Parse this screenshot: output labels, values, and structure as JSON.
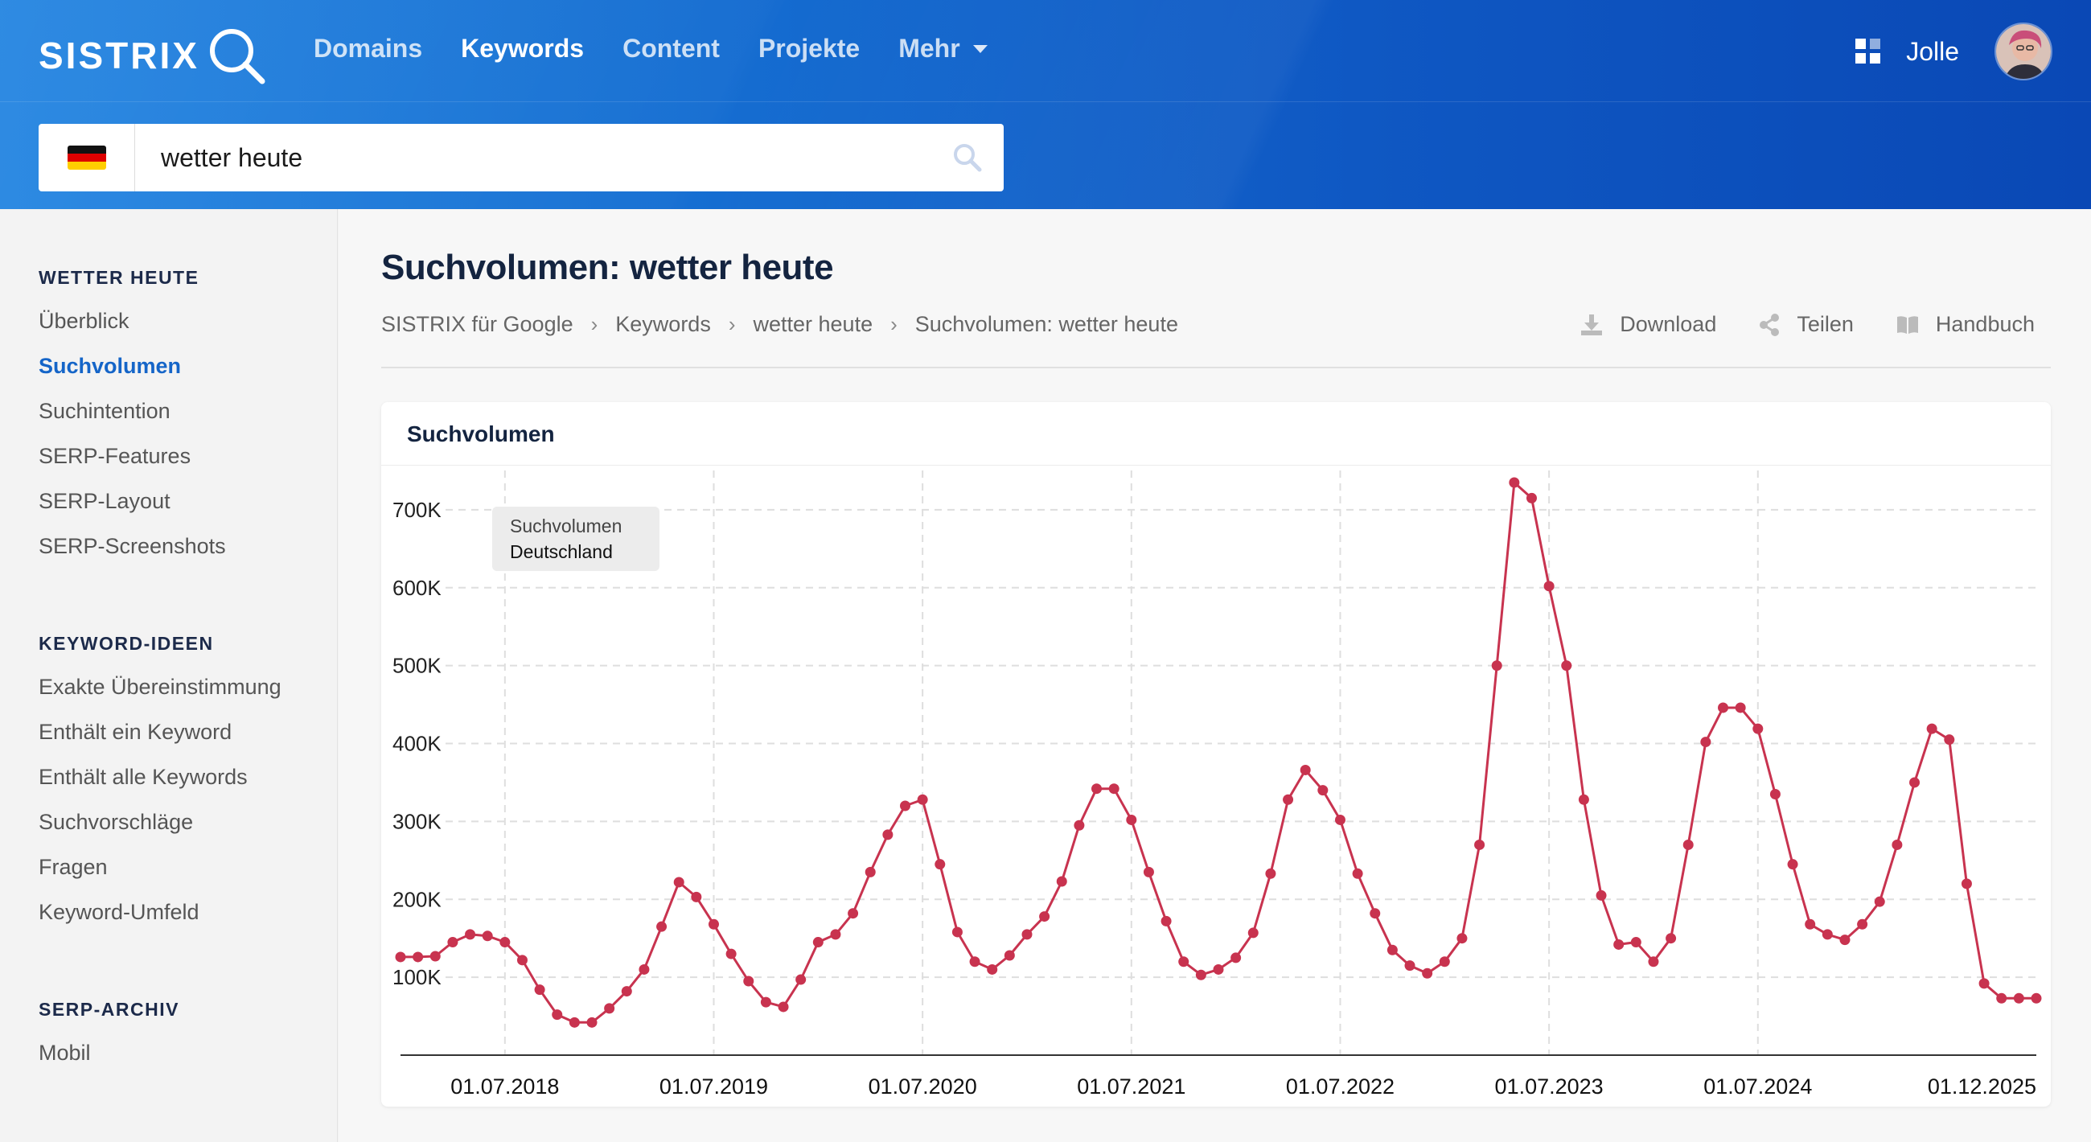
{
  "header": {
    "logo_text": "SISTRIX",
    "nav": [
      {
        "label": "Domains",
        "active": false
      },
      {
        "label": "Keywords",
        "active": true
      },
      {
        "label": "Content",
        "active": false
      },
      {
        "label": "Projekte",
        "active": false
      },
      {
        "label": "Mehr",
        "active": false
      }
    ],
    "user_name": "Jolle",
    "icons": {
      "logo": "magnifier-logo-icon",
      "apps": "apps-grid-icon",
      "caret": "chevron-down-icon"
    }
  },
  "search": {
    "value": "wetter heute",
    "country_flag": "germany-flag-icon",
    "flag_colors": [
      "#111111",
      "#dd0000",
      "#ffce00"
    ]
  },
  "sidebar": {
    "sections": [
      {
        "heading": "WETTER HEUTE",
        "items": [
          {
            "label": "Überblick",
            "active": false
          },
          {
            "label": "Suchvolumen",
            "active": true
          },
          {
            "label": "Suchintention",
            "active": false
          },
          {
            "label": "SERP-Features",
            "active": false
          },
          {
            "label": "SERP-Layout",
            "active": false
          },
          {
            "label": "SERP-Screenshots",
            "active": false
          }
        ]
      },
      {
        "heading": "KEYWORD-IDEEN",
        "items": [
          {
            "label": "Exakte Übereinstimmung",
            "active": false
          },
          {
            "label": "Enthält ein Keyword",
            "active": false
          },
          {
            "label": "Enthält alle Keywords",
            "active": false
          },
          {
            "label": "Suchvorschläge",
            "active": false
          },
          {
            "label": "Fragen",
            "active": false
          },
          {
            "label": "Keyword-Umfeld",
            "active": false
          }
        ]
      },
      {
        "heading": "SERP-ARCHIV",
        "items": [
          {
            "label": "Mobil",
            "active": false
          }
        ]
      }
    ]
  },
  "main": {
    "title": "Suchvolumen: wetter heute",
    "breadcrumb": [
      "SISTRIX für Google",
      "Keywords",
      "wetter heute",
      "Suchvolumen: wetter heute"
    ],
    "breadcrumb_separator": "›",
    "actions": [
      {
        "label": "Download",
        "icon": "download-icon"
      },
      {
        "label": "Teilen",
        "icon": "share-icon"
      },
      {
        "label": "Handbuch",
        "icon": "book-icon"
      }
    ],
    "card_title": "Suchvolumen"
  },
  "chart_data": {
    "type": "line",
    "title": "Suchvolumen",
    "legend": [
      "Suchvolumen",
      "Deutschland"
    ],
    "legend_placement": "top-left",
    "color": "#c8334f",
    "grid": true,
    "ylim": [
      0,
      735000
    ],
    "y_ticks": [
      100000,
      200000,
      300000,
      400000,
      500000,
      600000,
      700000
    ],
    "y_tick_labels": [
      "100K",
      "200K",
      "300K",
      "400K",
      "500K",
      "600K",
      "700K"
    ],
    "x_tick_labels": [
      "01.07.2018",
      "01.07.2019",
      "01.07.2020",
      "01.07.2021",
      "01.07.2022",
      "01.07.2023",
      "01.07.2024",
      "01.12.2025"
    ],
    "x_start": "2018-01",
    "x_end": "2025-12",
    "series": [
      {
        "name": "Suchvolumen Deutschland",
        "values": [
          126000,
          126000,
          127000,
          145000,
          155000,
          153000,
          145000,
          122000,
          84000,
          52000,
          42000,
          42000,
          60000,
          82000,
          110000,
          165000,
          222000,
          203000,
          168000,
          130000,
          95000,
          68000,
          62000,
          97000,
          145000,
          155000,
          182000,
          235000,
          283000,
          320000,
          328000,
          245000,
          158000,
          120000,
          110000,
          128000,
          155000,
          178000,
          223000,
          295000,
          342000,
          342000,
          302000,
          235000,
          172000,
          120000,
          103000,
          110000,
          125000,
          157000,
          233000,
          328000,
          366000,
          340000,
          302000,
          233000,
          182000,
          135000,
          115000,
          105000,
          120000,
          150000,
          270000,
          500000,
          735000,
          715000,
          602000,
          500000,
          328000,
          205000,
          142000,
          145000,
          120000,
          150000,
          270000,
          402000,
          446000,
          446000,
          419000,
          335000,
          245000,
          168000,
          155000,
          148000,
          168000,
          197000,
          270000,
          350000,
          419000,
          405000,
          220000,
          92000,
          73000,
          73000,
          73000
        ]
      }
    ]
  }
}
